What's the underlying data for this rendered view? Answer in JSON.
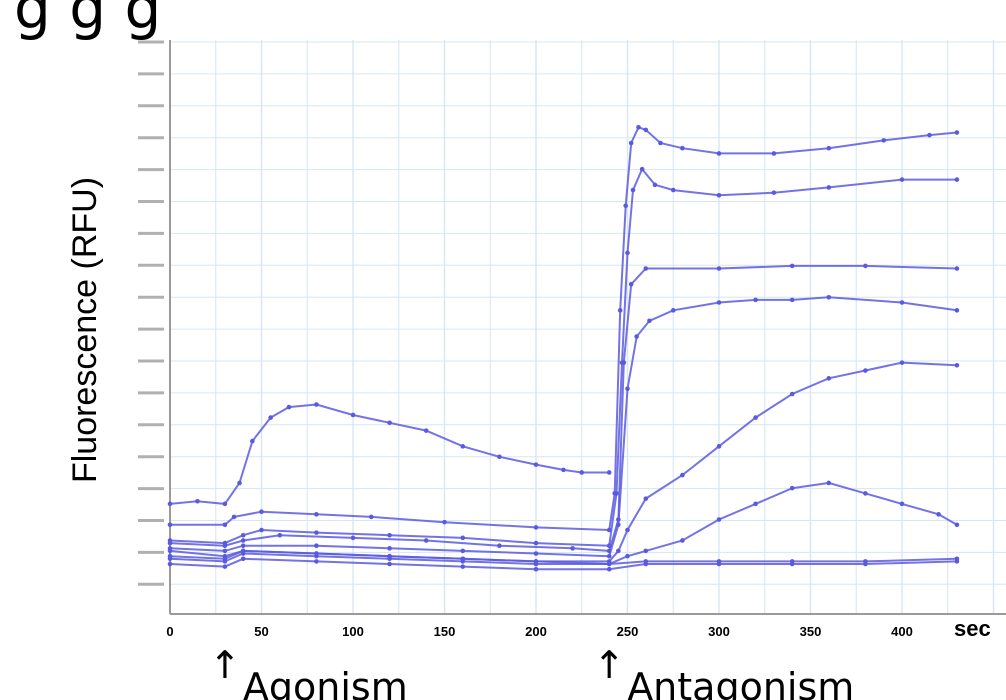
{
  "chart_data": {
    "type": "line",
    "title": "",
    "ylabel": "Fluorescence (RFU)",
    "x_unit_label": "sec",
    "xlim": [
      0,
      430
    ],
    "ylim": [
      0,
      1
    ],
    "x_ticks": [
      0,
      50,
      100,
      150,
      200,
      250,
      300,
      350,
      400
    ],
    "grid": true,
    "annotations": [
      {
        "text": "Agonism",
        "x": 30
      },
      {
        "text": "Antagonism",
        "x": 240
      }
    ],
    "series": [
      {
        "values": [
          [
            0,
            0.18
          ],
          [
            15,
            0.185
          ],
          [
            30,
            0.18
          ],
          [
            38,
            0.22
          ],
          [
            45,
            0.3
          ],
          [
            55,
            0.345
          ],
          [
            65,
            0.365
          ],
          [
            80,
            0.37
          ],
          [
            100,
            0.35
          ],
          [
            120,
            0.335
          ],
          [
            140,
            0.32
          ],
          [
            160,
            0.29
          ],
          [
            180,
            0.27
          ],
          [
            200,
            0.255
          ],
          [
            215,
            0.245
          ],
          [
            225,
            0.24
          ],
          [
            240,
            0.24
          ]
        ]
      },
      {
        "values": [
          [
            0,
            0.14
          ],
          [
            30,
            0.14
          ],
          [
            35,
            0.155
          ],
          [
            50,
            0.165
          ],
          [
            80,
            0.16
          ],
          [
            110,
            0.155
          ],
          [
            150,
            0.145
          ],
          [
            200,
            0.135
          ],
          [
            240,
            0.13
          ],
          [
            243,
            0.2
          ],
          [
            246,
            0.55
          ],
          [
            249,
            0.75
          ],
          [
            252,
            0.87
          ],
          [
            256,
            0.9
          ],
          [
            260,
            0.895
          ],
          [
            268,
            0.87
          ],
          [
            280,
            0.86
          ],
          [
            300,
            0.85
          ],
          [
            330,
            0.85
          ],
          [
            360,
            0.86
          ],
          [
            390,
            0.875
          ],
          [
            415,
            0.885
          ],
          [
            430,
            0.89
          ]
        ]
      },
      {
        "values": [
          [
            0,
            0.11
          ],
          [
            30,
            0.105
          ],
          [
            40,
            0.12
          ],
          [
            50,
            0.13
          ],
          [
            80,
            0.125
          ],
          [
            120,
            0.12
          ],
          [
            160,
            0.115
          ],
          [
            200,
            0.105
          ],
          [
            240,
            0.1
          ],
          [
            244,
            0.2
          ],
          [
            247,
            0.45
          ],
          [
            250,
            0.66
          ],
          [
            253,
            0.78
          ],
          [
            258,
            0.82
          ],
          [
            265,
            0.79
          ],
          [
            275,
            0.78
          ],
          [
            300,
            0.77
          ],
          [
            330,
            0.775
          ],
          [
            360,
            0.785
          ],
          [
            400,
            0.8
          ],
          [
            430,
            0.8
          ]
        ]
      },
      {
        "values": [
          [
            0,
            0.105
          ],
          [
            30,
            0.1
          ],
          [
            40,
            0.11
          ],
          [
            60,
            0.12
          ],
          [
            100,
            0.115
          ],
          [
            140,
            0.11
          ],
          [
            180,
            0.1
          ],
          [
            220,
            0.095
          ],
          [
            240,
            0.09
          ],
          [
            245,
            0.15
          ],
          [
            248,
            0.45
          ],
          [
            252,
            0.6
          ],
          [
            260,
            0.63
          ],
          [
            300,
            0.63
          ],
          [
            340,
            0.635
          ],
          [
            380,
            0.635
          ],
          [
            430,
            0.63
          ]
        ]
      },
      {
        "values": [
          [
            0,
            0.095
          ],
          [
            30,
            0.09
          ],
          [
            40,
            0.1
          ],
          [
            80,
            0.1
          ],
          [
            120,
            0.095
          ],
          [
            160,
            0.09
          ],
          [
            200,
            0.085
          ],
          [
            240,
            0.08
          ],
          [
            245,
            0.14
          ],
          [
            250,
            0.4
          ],
          [
            255,
            0.5
          ],
          [
            262,
            0.53
          ],
          [
            275,
            0.55
          ],
          [
            300,
            0.565
          ],
          [
            320,
            0.57
          ],
          [
            340,
            0.57
          ],
          [
            360,
            0.575
          ],
          [
            400,
            0.565
          ],
          [
            430,
            0.55
          ]
        ]
      },
      {
        "values": [
          [
            0,
            0.09
          ],
          [
            30,
            0.08
          ],
          [
            40,
            0.09
          ],
          [
            80,
            0.085
          ],
          [
            120,
            0.08
          ],
          [
            160,
            0.075
          ],
          [
            200,
            0.07
          ],
          [
            240,
            0.07
          ],
          [
            245,
            0.09
          ],
          [
            250,
            0.13
          ],
          [
            260,
            0.19
          ],
          [
            280,
            0.235
          ],
          [
            300,
            0.29
          ],
          [
            320,
            0.345
          ],
          [
            340,
            0.39
          ],
          [
            360,
            0.42
          ],
          [
            380,
            0.435
          ],
          [
            400,
            0.45
          ],
          [
            430,
            0.445
          ]
        ]
      },
      {
        "values": [
          [
            0,
            0.08
          ],
          [
            30,
            0.075
          ],
          [
            40,
            0.09
          ],
          [
            80,
            0.085
          ],
          [
            120,
            0.08
          ],
          [
            160,
            0.075
          ],
          [
            200,
            0.07
          ],
          [
            240,
            0.065
          ],
          [
            250,
            0.08
          ],
          [
            260,
            0.09
          ],
          [
            280,
            0.11
          ],
          [
            300,
            0.15
          ],
          [
            320,
            0.18
          ],
          [
            340,
            0.21
          ],
          [
            360,
            0.22
          ],
          [
            380,
            0.2
          ],
          [
            400,
            0.18
          ],
          [
            420,
            0.16
          ],
          [
            430,
            0.14
          ]
        ]
      },
      {
        "values": [
          [
            0,
            0.075
          ],
          [
            30,
            0.07
          ],
          [
            40,
            0.085
          ],
          [
            80,
            0.08
          ],
          [
            120,
            0.075
          ],
          [
            160,
            0.07
          ],
          [
            200,
            0.065
          ],
          [
            240,
            0.065
          ],
          [
            260,
            0.07
          ],
          [
            300,
            0.07
          ],
          [
            340,
            0.07
          ],
          [
            380,
            0.07
          ],
          [
            430,
            0.075
          ]
        ]
      },
      {
        "values": [
          [
            0,
            0.065
          ],
          [
            30,
            0.06
          ],
          [
            40,
            0.075
          ],
          [
            80,
            0.07
          ],
          [
            120,
            0.065
          ],
          [
            160,
            0.06
          ],
          [
            200,
            0.055
          ],
          [
            240,
            0.055
          ],
          [
            260,
            0.065
          ],
          [
            300,
            0.065
          ],
          [
            340,
            0.065
          ],
          [
            380,
            0.065
          ],
          [
            430,
            0.07
          ]
        ]
      }
    ]
  },
  "colors": {
    "line": "#5a5ae0",
    "grid": "#d6e6f4",
    "axis": "#b0b0b0"
  },
  "title_fragment": "g                                   g g"
}
